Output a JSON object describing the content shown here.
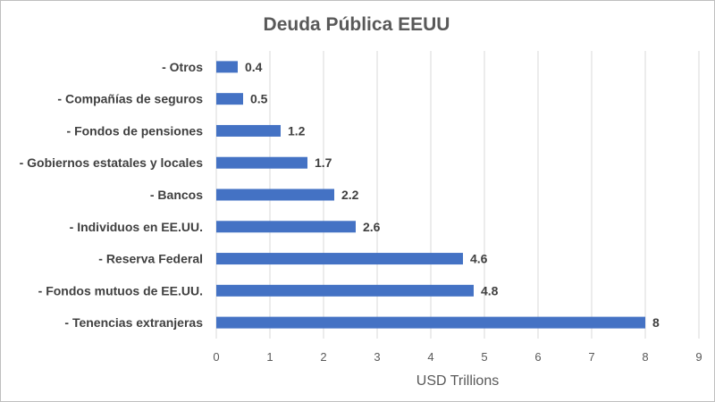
{
  "chart_data": {
    "type": "bar",
    "orientation": "horizontal",
    "title": "Deuda Pública EEUU",
    "xlabel": "USD Trillions",
    "ylabel": "",
    "xlim": [
      0,
      9
    ],
    "xticks": [
      0,
      1,
      2,
      3,
      4,
      5,
      6,
      7,
      8,
      9
    ],
    "grid": true,
    "legend": "none",
    "categories": [
      "- Tenencias extranjeras",
      "- Fondos mutuos de EE.UU.",
      "- Reserva Federal",
      "- Individuos en EE.UU.",
      "- Bancos",
      "- Gobiernos estatales y locales",
      "- Fondos de pensiones",
      "- Compañías de seguros",
      "- Otros"
    ],
    "values": [
      8,
      4.8,
      4.6,
      2.6,
      2.2,
      1.7,
      1.2,
      0.5,
      0.4
    ],
    "value_labels": [
      "8",
      "4.8",
      "4.6",
      "2.6",
      "2.2",
      "1.7",
      "1.2",
      "0.5",
      "0.4"
    ],
    "bar_color": "#4472c4",
    "grid_color": "#d9d9d9"
  }
}
